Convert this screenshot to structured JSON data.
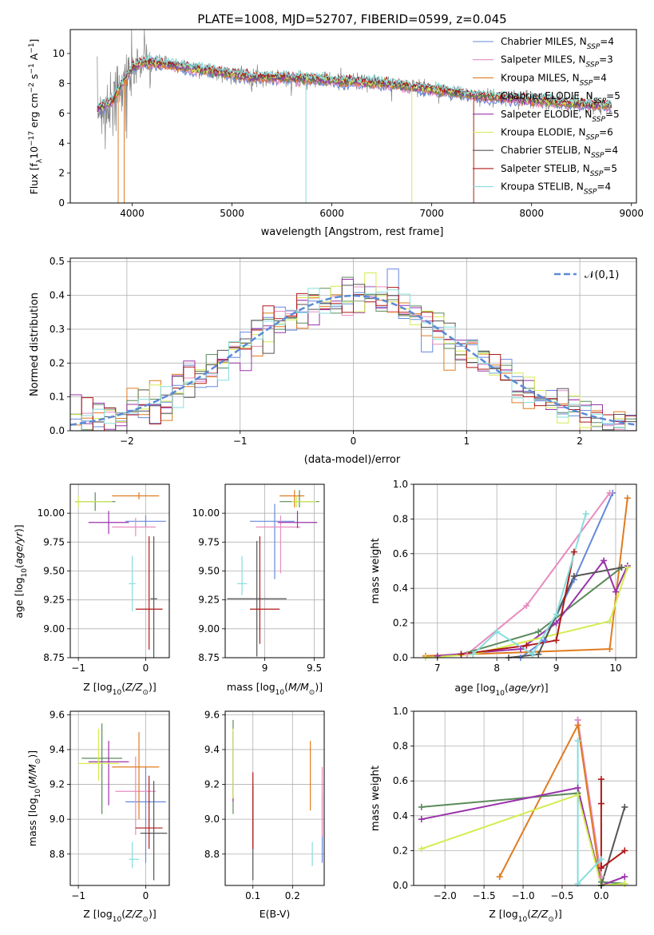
{
  "figure_title": "PLATE=1008, MJD=52707, FIBERID=0599, z=0.045",
  "models": [
    {
      "name": "Chabrier MILES, N",
      "sub": "SSP",
      "tail": "=4",
      "color": "#6688dd"
    },
    {
      "name": "Salpeter MILES, N",
      "sub": "SSP",
      "tail": "=3",
      "color": "#e88cc0"
    },
    {
      "name": "Kroupa MILES, N",
      "sub": "SSP",
      "tail": "=4",
      "color": "#e07b20"
    },
    {
      "name": "Chabrier ELODIE, N",
      "sub": "SSP",
      "tail": "=5",
      "color": "#5b8a5b"
    },
    {
      "name": "Salpeter ELODIE, N",
      "sub": "SSP",
      "tail": "=5",
      "color": "#9933aa"
    },
    {
      "name": "Kroupa ELODIE, N",
      "sub": "SSP",
      "tail": "=6",
      "color": "#d4ec50"
    },
    {
      "name": "Chabrier STELIB, N",
      "sub": "SSP",
      "tail": "=4",
      "color": "#555555"
    },
    {
      "name": "Salpeter STELIB, N",
      "sub": "SSP",
      "tail": "=5",
      "color": "#b01818"
    },
    {
      "name": "Kroupa STELIB, N",
      "sub": "SSP",
      "tail": "=4",
      "color": "#88dddd"
    }
  ],
  "chart_data": [
    {
      "type": "line",
      "title": "PLATE=1008, MJD=52707, FIBERID=0599, z=0.045",
      "xlabel": "wavelength [Angstrom, rest frame]",
      "ylabel": "Flux [f_λ 10^-17 erg cm^-2 s^-1 A^-1]",
      "xlim": [
        3380,
        9050
      ],
      "ylim": [
        0,
        11.6
      ],
      "xticks": [
        4000,
        5000,
        6000,
        7000,
        8000,
        9000
      ],
      "yticks": [
        0,
        2,
        4,
        6,
        8,
        10
      ],
      "observed_color": "#808080",
      "continuum": [
        [
          3650,
          6.3
        ],
        [
          3800,
          6.8
        ],
        [
          3900,
          8.0
        ],
        [
          4000,
          9.0
        ],
        [
          4100,
          9.4
        ],
        [
          4300,
          9.3
        ],
        [
          4500,
          9.1
        ],
        [
          4800,
          8.8
        ],
        [
          5000,
          8.6
        ],
        [
          5200,
          8.4
        ],
        [
          5500,
          8.4
        ],
        [
          6000,
          8.2
        ],
        [
          6500,
          8.0
        ],
        [
          7000,
          7.6
        ],
        [
          7500,
          7.1
        ],
        [
          8000,
          6.9
        ],
        [
          8500,
          6.6
        ],
        [
          8800,
          6.5
        ]
      ],
      "model_spikes": [
        [
          3860,
          0
        ],
        [
          3920,
          0
        ],
        [
          5740,
          0
        ],
        [
          6800,
          0
        ],
        [
          7420,
          0
        ]
      ]
    },
    {
      "type": "line",
      "xlabel": "(data-model)/error",
      "ylabel": "Normed distribution",
      "xlim": [
        -2.5,
        2.5
      ],
      "ylim": [
        0,
        0.51
      ],
      "xticks": [
        -2,
        -1,
        0,
        1,
        2
      ],
      "yticks": [
        0.0,
        0.1,
        0.2,
        0.3,
        0.4,
        0.5
      ],
      "legend": "𝒩(0,1)",
      "gaussian_color": "#5b8ad6",
      "bin_width": 0.1,
      "histogram_reference": "standard normal with bin scatter"
    },
    {
      "type": "scatter",
      "xlabel": "Z [log10(Z/Z⊙)]",
      "ylabel": "age [log10(age/yr)]",
      "xlim": [
        -1.12,
        0.35
      ],
      "ylim": [
        8.75,
        10.25
      ],
      "xticks": [
        -1,
        0
      ],
      "yticks": [
        8.75,
        9.0,
        9.25,
        9.5,
        9.75,
        10.0
      ],
      "points": [
        {
          "series": 0,
          "x": 0.0,
          "y": 9.93,
          "xerr": [
            0.3,
            0.3
          ],
          "yerr": [
            0.05,
            0.05
          ]
        },
        {
          "series": 1,
          "x": -0.15,
          "y": 9.88,
          "xerr": [
            0.35,
            0.3
          ],
          "yerr": [
            0.08,
            0.08
          ]
        },
        {
          "series": 2,
          "x": -0.1,
          "y": 10.15,
          "xerr": [
            0.4,
            0.3
          ],
          "yerr": [
            0.03,
            0.03
          ]
        },
        {
          "series": 3,
          "x": -0.75,
          "y": 10.1,
          "xerr": [
            0.3,
            0.3
          ],
          "yerr": [
            0.08,
            0.08
          ]
        },
        {
          "series": 4,
          "x": -0.55,
          "y": 9.92,
          "xerr": [
            0.3,
            0.3
          ],
          "yerr": [
            0.1,
            0.1
          ]
        },
        {
          "series": 5,
          "x": -1.0,
          "y": 10.1,
          "xerr": [
            0.05,
            0.5
          ],
          "yerr": [
            0.05,
            0.05
          ]
        },
        {
          "series": 6,
          "x": 0.12,
          "y": 9.26,
          "xerr": [
            0.05,
            0.05
          ],
          "yerr": [
            0.54,
            0.54
          ]
        },
        {
          "series": 7,
          "x": 0.05,
          "y": 9.17,
          "xerr": [
            0.2,
            0.2
          ],
          "yerr": [
            0.35,
            0.63
          ]
        },
        {
          "series": 8,
          "x": -0.2,
          "y": 9.39,
          "xerr": [
            0.05,
            0.05
          ],
          "yerr": [
            0.24,
            0.24
          ]
        }
      ]
    },
    {
      "type": "scatter",
      "xlabel": "mass [log10(M/M⊙)]",
      "ylabel": "",
      "xlim": [
        8.6,
        9.6
      ],
      "ylim": [
        8.75,
        10.25
      ],
      "xticks": [
        9.0,
        9.5
      ],
      "yticks": [
        8.75,
        9.0,
        9.25,
        9.5,
        9.75,
        10.0
      ],
      "points": [
        {
          "series": 0,
          "x": 9.1,
          "y": 9.93,
          "xerr": [
            0.25,
            0.2
          ],
          "yerr": [
            0.5,
            0.15
          ]
        },
        {
          "series": 1,
          "x": 9.16,
          "y": 9.88,
          "xerr": [
            0.25,
            0.2
          ],
          "yerr": [
            0.4,
            0.1
          ]
        },
        {
          "series": 2,
          "x": 9.3,
          "y": 10.15,
          "xerr": [
            0.15,
            0.1
          ],
          "yerr": [
            0.1,
            0.05
          ]
        },
        {
          "series": 3,
          "x": 9.35,
          "y": 10.1,
          "xerr": [
            0.2,
            0.2
          ],
          "yerr": [
            0.05,
            0.1
          ]
        },
        {
          "series": 4,
          "x": 9.33,
          "y": 9.92,
          "xerr": [
            0.2,
            0.2
          ],
          "yerr": [
            0.05,
            0.1
          ]
        },
        {
          "series": 5,
          "x": 9.32,
          "y": 10.1,
          "xerr": [
            0.05,
            0.2
          ],
          "yerr": [
            0.05,
            0.05
          ]
        },
        {
          "series": 6,
          "x": 8.92,
          "y": 9.26,
          "xerr": [
            0.3,
            0.3
          ],
          "yerr": [
            0.5,
            0.5
          ]
        },
        {
          "series": 7,
          "x": 8.95,
          "y": 9.17,
          "xerr": [
            0.1,
            0.2
          ],
          "yerr": [
            0.3,
            0.63
          ]
        },
        {
          "series": 8,
          "x": 8.77,
          "y": 9.39,
          "xerr": [
            0.05,
            0.05
          ],
          "yerr": [
            0.1,
            0.24
          ]
        }
      ]
    },
    {
      "type": "line",
      "xlabel": "age [log10(age/yr)]",
      "ylabel": "mass weight",
      "xlim": [
        6.6,
        10.35
      ],
      "ylim": [
        0,
        1.0
      ],
      "xticks": [
        7,
        8,
        9,
        10
      ],
      "yticks": [
        0.0,
        0.2,
        0.4,
        0.6,
        0.8,
        1.0
      ],
      "series": [
        {
          "series": 0,
          "x": [
            8.4,
            8.8,
            9.3,
            9.95
          ],
          "y": [
            0.0,
            0.1,
            0.45,
            0.95
          ]
        },
        {
          "series": 1,
          "x": [
            7.5,
            8.5,
            9.9
          ],
          "y": [
            0.02,
            0.3,
            0.95
          ]
        },
        {
          "series": 2,
          "x": [
            6.8,
            9.9,
            10.2
          ],
          "y": [
            0.01,
            0.05,
            0.92
          ]
        },
        {
          "series": 3,
          "x": [
            7.4,
            8.7,
            10.1
          ],
          "y": [
            0.02,
            0.15,
            0.52
          ]
        },
        {
          "series": 4,
          "x": [
            7.0,
            8.4,
            9.0,
            9.8,
            10.0,
            10.2
          ],
          "y": [
            0.01,
            0.05,
            0.2,
            0.56,
            0.38,
            0.53
          ]
        },
        {
          "series": 5,
          "x": [
            6.8,
            7.6,
            9.9,
            10.2
          ],
          "y": [
            0.0,
            0.02,
            0.21,
            0.52
          ]
        },
        {
          "series": 6,
          "x": [
            8.2,
            8.7,
            9.3,
            10.1
          ],
          "y": [
            0.0,
            0.02,
            0.47,
            0.52
          ]
        },
        {
          "series": 7,
          "x": [
            7.4,
            8.5,
            9.0,
            9.3
          ],
          "y": [
            0.02,
            0.07,
            0.1,
            0.61
          ]
        },
        {
          "series": 8,
          "x": [
            7.6,
            8.0,
            8.6,
            9.0,
            9.5
          ],
          "y": [
            0.02,
            0.15,
            0.02,
            0.25,
            0.83
          ]
        }
      ]
    },
    {
      "type": "scatter",
      "xlabel": "Z [log10(Z/Z⊙)]",
      "ylabel": "mass [log10(M/M⊙)]",
      "xlim": [
        -1.12,
        0.35
      ],
      "ylim": [
        8.62,
        9.62
      ],
      "xticks": [
        -1,
        0
      ],
      "yticks": [
        8.8,
        9.0,
        9.2,
        9.4,
        9.6
      ],
      "points": [
        {
          "series": 0,
          "x": 0.0,
          "y": 9.1,
          "xerr": [
            0.3,
            0.3
          ],
          "yerr": [
            0.35,
            0.2
          ]
        },
        {
          "series": 1,
          "x": -0.15,
          "y": 9.16,
          "xerr": [
            0.3,
            0.3
          ],
          "yerr": [
            0.25,
            0.2
          ]
        },
        {
          "series": 2,
          "x": -0.1,
          "y": 9.3,
          "xerr": [
            0.4,
            0.3
          ],
          "yerr": [
            0.3,
            0.2
          ]
        },
        {
          "series": 3,
          "x": -0.65,
          "y": 9.35,
          "xerr": [
            0.3,
            0.3
          ],
          "yerr": [
            0.32,
            0.2
          ]
        },
        {
          "series": 4,
          "x": -0.55,
          "y": 9.33,
          "xerr": [
            0.3,
            0.3
          ],
          "yerr": [
            0.25,
            0.12
          ]
        },
        {
          "series": 5,
          "x": -0.7,
          "y": 9.32,
          "xerr": [
            0.3,
            0.3
          ],
          "yerr": [
            0.1,
            0.2
          ]
        },
        {
          "series": 6,
          "x": 0.12,
          "y": 8.92,
          "xerr": [
            0.2,
            0.2
          ],
          "yerr": [
            0.27,
            0.3
          ]
        },
        {
          "series": 7,
          "x": 0.05,
          "y": 8.95,
          "xerr": [
            0.2,
            0.2
          ],
          "yerr": [
            0.12,
            0.3
          ]
        },
        {
          "series": 8,
          "x": -0.2,
          "y": 8.77,
          "xerr": [
            0.05,
            0.1
          ],
          "yerr": [
            0.05,
            0.1
          ]
        }
      ]
    },
    {
      "type": "scatter",
      "xlabel": "E(B-V)",
      "ylabel": "",
      "xlim": [
        0.03,
        0.28
      ],
      "ylim": [
        8.62,
        9.62
      ],
      "xticks": [
        0.1,
        0.2
      ],
      "yticks": [
        8.8,
        9.0,
        9.2,
        9.4,
        9.6
      ],
      "points": [
        {
          "series": 0,
          "x": 0.275,
          "y": 8.95,
          "yerr": [
            0.2,
            0.2
          ]
        },
        {
          "series": 1,
          "x": 0.275,
          "y": 9.15,
          "yerr": [
            0.25,
            0.15
          ]
        },
        {
          "series": 2,
          "x": 0.245,
          "y": 9.25,
          "yerr": [
            0.2,
            0.2
          ]
        },
        {
          "series": 3,
          "x": 0.05,
          "y": 9.3,
          "yerr": [
            0.27,
            0.27
          ]
        },
        {
          "series": 4,
          "x": 0.05,
          "y": 9.3,
          "yerr": [
            0.2,
            0.2
          ]
        },
        {
          "series": 5,
          "x": 0.05,
          "y": 9.32,
          "yerr": [
            0.2,
            0.2
          ]
        },
        {
          "series": 6,
          "x": 0.1,
          "y": 8.92,
          "yerr": [
            0.27,
            0.27
          ]
        },
        {
          "series": 7,
          "x": 0.1,
          "y": 9.05,
          "yerr": [
            0.22,
            0.22
          ]
        },
        {
          "series": 8,
          "x": 0.25,
          "y": 8.8,
          "yerr": [
            0.07,
            0.07
          ]
        }
      ]
    },
    {
      "type": "line",
      "xlabel": "Z [log10(Z/Z⊙)]",
      "ylabel": "mass weight",
      "xlim": [
        -2.4,
        0.45
      ],
      "ylim": [
        0,
        1.0
      ],
      "xticks": [
        -2.0,
        -1.5,
        -1.0,
        -0.5,
        0.0
      ],
      "yticks": [
        0.0,
        0.2,
        0.4,
        0.6,
        0.8,
        1.0
      ],
      "series": [
        {
          "series": 0,
          "x": [
            -0.3,
            0.0,
            0.3
          ],
          "y": [
            0.95,
            0.0,
            0.01
          ]
        },
        {
          "series": 1,
          "x": [
            -0.3,
            0.0
          ],
          "y": [
            0.95,
            0.05
          ]
        },
        {
          "series": 2,
          "x": [
            -1.3,
            -0.3,
            0.0
          ],
          "y": [
            0.05,
            0.92,
            0.0
          ]
        },
        {
          "series": 3,
          "x": [
            -2.3,
            -0.3,
            0.0,
            0.3
          ],
          "y": [
            0.45,
            0.53,
            0.02,
            0.01
          ]
        },
        {
          "series": 4,
          "x": [
            -2.3,
            -0.3,
            0.0,
            0.3
          ],
          "y": [
            0.38,
            0.56,
            0.0,
            0.05
          ]
        },
        {
          "series": 5,
          "x": [
            -2.3,
            -0.3,
            0.0,
            0.3
          ],
          "y": [
            0.21,
            0.52,
            0.0,
            0.01
          ]
        },
        {
          "series": 6,
          "x": [
            0.0,
            0.3
          ],
          "y": [
            0.0,
            0.45
          ]
        },
        {
          "series": 7,
          "x": [
            0.0,
            0.0,
            0.0,
            0.3
          ],
          "y": [
            0.61,
            0.47,
            0.1,
            0.2
          ]
        },
        {
          "series": 8,
          "x": [
            -0.3,
            -0.3,
            0.0
          ],
          "y": [
            0.83,
            0.01,
            0.15
          ]
        }
      ]
    }
  ]
}
